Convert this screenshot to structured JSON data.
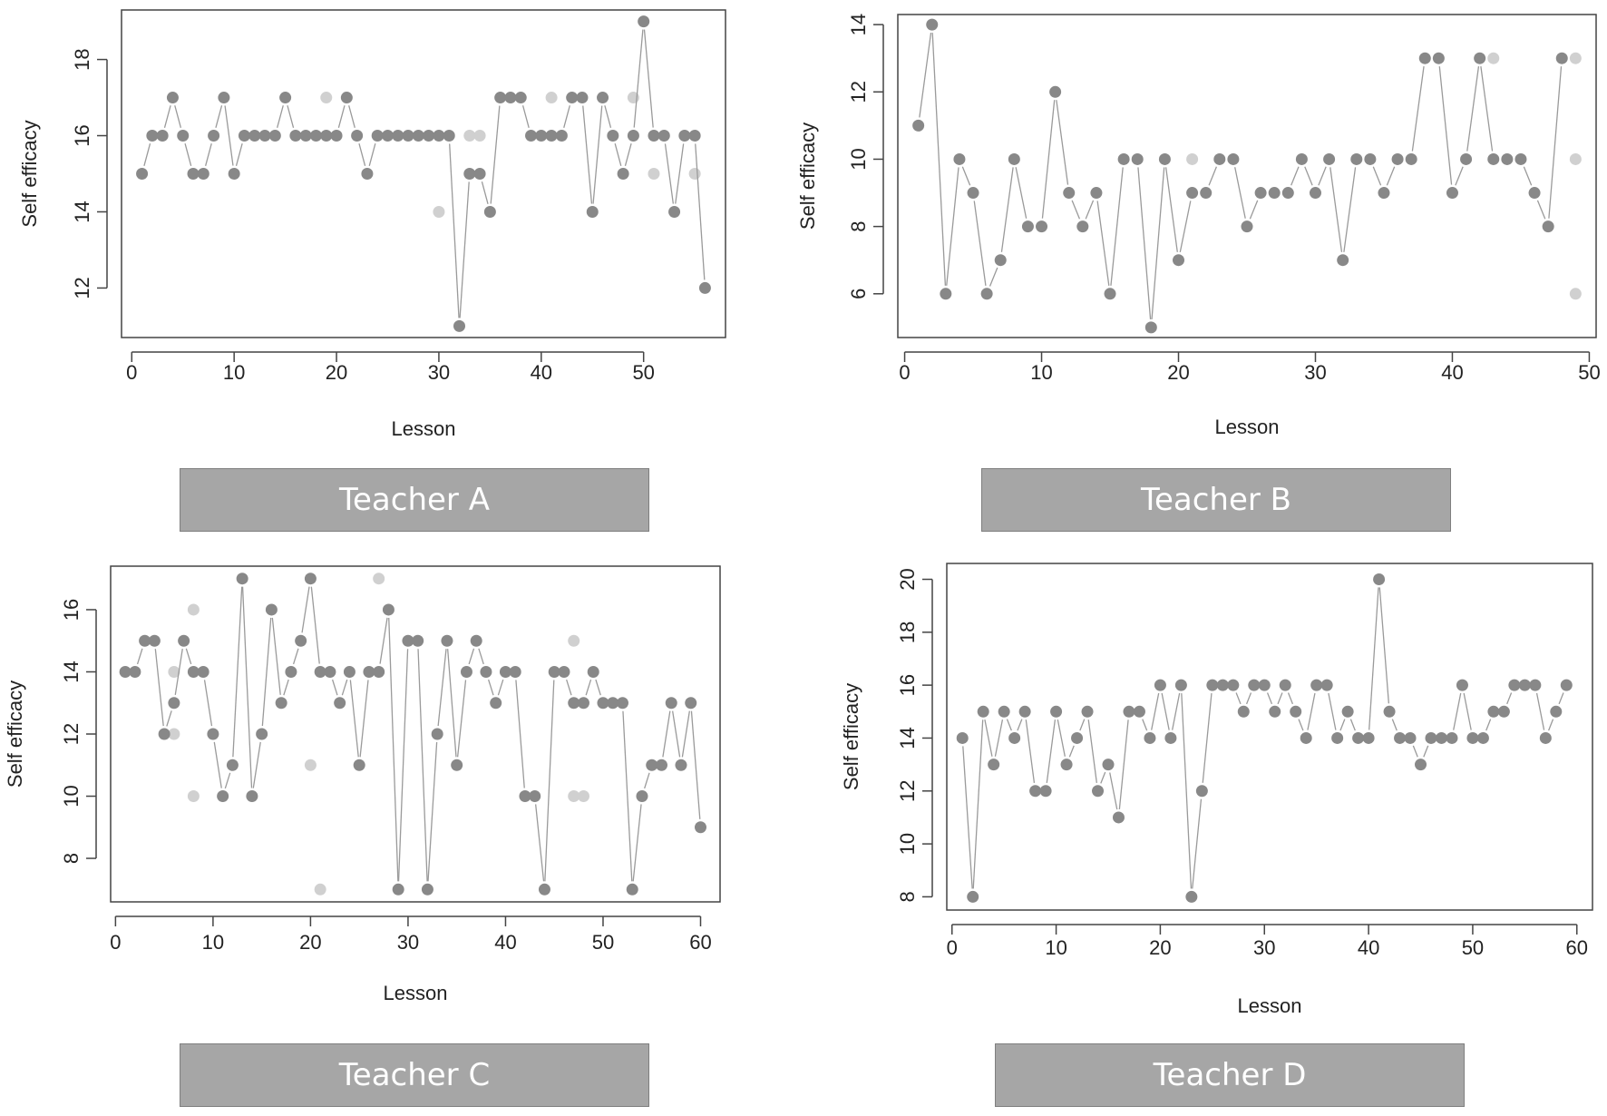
{
  "chart_data": [
    {
      "type": "scatter",
      "title": "",
      "xlabel": "Lesson",
      "ylabel": "Self efficacy",
      "xlim": [
        -1,
        58
      ],
      "ylim": [
        10.7,
        19.3
      ],
      "xticks": [
        0,
        10,
        20,
        30,
        40,
        50
      ],
      "yticks": [
        12,
        14,
        16,
        18
      ],
      "caption": "Teacher A",
      "series": [
        {
          "name": "main",
          "shade": "#888888",
          "line": "#9a9a9a",
          "x": [
            1,
            2,
            3,
            4,
            5,
            6,
            7,
            8,
            9,
            10,
            11,
            12,
            13,
            14,
            15,
            16,
            17,
            18,
            19,
            20,
            21,
            22,
            23,
            24,
            25,
            26,
            27,
            28,
            29,
            30,
            31,
            32,
            33,
            34,
            35,
            36,
            37,
            38,
            39,
            40,
            41,
            42,
            43,
            44,
            45,
            46,
            47,
            48,
            49,
            50,
            51,
            52,
            53,
            54,
            55,
            56
          ],
          "y": [
            15,
            16,
            16,
            17,
            16,
            15,
            15,
            16,
            17,
            15,
            16,
            16,
            16,
            16,
            17,
            16,
            16,
            16,
            16,
            16,
            17,
            16,
            15,
            16,
            16,
            16,
            16,
            16,
            16,
            16,
            16,
            11,
            15,
            15,
            14,
            17,
            17,
            17,
            16,
            16,
            16,
            16,
            17,
            17,
            14,
            17,
            16,
            15,
            16,
            19,
            16,
            16,
            14,
            16,
            16,
            12
          ]
        },
        {
          "name": "light",
          "shade": "#d0d0d0",
          "line": "#dcdcdc",
          "x": [
            19,
            30,
            33,
            34,
            41,
            49,
            51,
            55
          ],
          "y": [
            17,
            14,
            16,
            16,
            17,
            17,
            15,
            15
          ]
        }
      ]
    },
    {
      "type": "scatter",
      "title": "",
      "xlabel": "Lesson",
      "ylabel": "Self efficacy",
      "xlim": [
        -0.5,
        50.5
      ],
      "ylim": [
        4.7,
        14.3
      ],
      "xticks": [
        0,
        10,
        20,
        30,
        40,
        50
      ],
      "yticks": [
        6,
        8,
        10,
        12,
        14
      ],
      "caption": "Teacher B",
      "series": [
        {
          "name": "main",
          "shade": "#888888",
          "line": "#9a9a9a",
          "x": [
            1,
            2,
            3,
            4,
            5,
            6,
            7,
            8,
            9,
            10,
            11,
            12,
            13,
            14,
            15,
            16,
            17,
            18,
            19,
            20,
            21,
            22,
            23,
            24,
            25,
            26,
            27,
            28,
            29,
            30,
            31,
            32,
            33,
            34,
            35,
            36,
            37,
            38,
            39,
            40,
            41,
            42,
            43,
            44,
            45,
            46,
            47,
            48
          ],
          "y": [
            11,
            14,
            6,
            10,
            9,
            6,
            7,
            10,
            8,
            8,
            12,
            9,
            8,
            9,
            6,
            10,
            10,
            5,
            10,
            7,
            9,
            9,
            10,
            10,
            8,
            9,
            9,
            9,
            10,
            9,
            10,
            7,
            10,
            10,
            9,
            10,
            10,
            13,
            13,
            9,
            10,
            13,
            10,
            10,
            10,
            9,
            8,
            13
          ]
        },
        {
          "name": "light",
          "shade": "#d0d0d0",
          "line": "#dcdcdc",
          "x": [
            21,
            43,
            49,
            49,
            49
          ],
          "y": [
            10,
            13,
            13,
            10,
            6
          ]
        }
      ]
    },
    {
      "type": "scatter",
      "title": "",
      "xlabel": "Lesson",
      "ylabel": "Self efficacy",
      "xlim": [
        -0.5,
        62
      ],
      "ylim": [
        6.6,
        17.4
      ],
      "xticks": [
        0,
        10,
        20,
        30,
        40,
        50,
        60
      ],
      "yticks": [
        8,
        10,
        12,
        14,
        16
      ],
      "caption": "Teacher C",
      "series": [
        {
          "name": "main",
          "shade": "#888888",
          "line": "#9a9a9a",
          "x": [
            1,
            2,
            3,
            4,
            5,
            6,
            7,
            8,
            9,
            10,
            11,
            12,
            13,
            14,
            15,
            16,
            17,
            18,
            19,
            20,
            21,
            22,
            23,
            24,
            25,
            26,
            27,
            28,
            29,
            30,
            31,
            32,
            33,
            34,
            35,
            36,
            37,
            38,
            39,
            40,
            41,
            42,
            43,
            44,
            45,
            46,
            47,
            48,
            49,
            50,
            51,
            52,
            53,
            54,
            55,
            56,
            57,
            58,
            59,
            60
          ],
          "y": [
            14,
            14,
            15,
            15,
            12,
            13,
            15,
            14,
            14,
            12,
            10,
            11,
            17,
            10,
            12,
            16,
            13,
            14,
            15,
            17,
            14,
            14,
            13,
            14,
            11,
            14,
            14,
            16,
            7,
            15,
            15,
            7,
            12,
            15,
            11,
            14,
            15,
            14,
            13,
            14,
            14,
            10,
            10,
            7,
            14,
            14,
            13,
            13,
            14,
            13,
            13,
            13,
            7,
            10,
            11,
            11,
            13,
            11,
            13,
            9
          ]
        },
        {
          "name": "light",
          "shade": "#d0d0d0",
          "line": "#dcdcdc",
          "x": [
            6,
            6,
            8,
            8,
            20,
            21,
            27,
            47,
            47,
            48
          ],
          "y": [
            14,
            12,
            16,
            10,
            11,
            7,
            17,
            15,
            10,
            10
          ]
        }
      ]
    },
    {
      "type": "scatter",
      "title": "",
      "xlabel": "Lesson",
      "ylabel": "Self efficacy",
      "xlim": [
        -0.5,
        61.5
      ],
      "ylim": [
        7.5,
        20.6
      ],
      "xticks": [
        0,
        10,
        20,
        30,
        40,
        50,
        60
      ],
      "yticks": [
        8,
        10,
        12,
        14,
        16,
        18,
        20
      ],
      "caption": "Teacher D",
      "series": [
        {
          "name": "main",
          "shade": "#888888",
          "line": "#9a9a9a",
          "x": [
            1,
            2,
            3,
            4,
            5,
            6,
            7,
            8,
            9,
            10,
            11,
            12,
            13,
            14,
            15,
            16,
            17,
            18,
            19,
            20,
            21,
            22,
            23,
            24,
            25,
            26,
            27,
            28,
            29,
            30,
            31,
            32,
            33,
            34,
            35,
            36,
            37,
            38,
            39,
            40,
            41,
            42,
            43,
            44,
            45,
            46,
            47,
            48,
            49,
            50,
            51,
            52,
            53,
            54,
            55,
            56,
            57,
            58,
            59
          ],
          "y": [
            14,
            8,
            15,
            13,
            15,
            14,
            15,
            12,
            12,
            15,
            13,
            14,
            15,
            12,
            13,
            11,
            15,
            15,
            14,
            16,
            14,
            16,
            8,
            12,
            16,
            16,
            16,
            15,
            16,
            16,
            15,
            16,
            15,
            14,
            16,
            16,
            14,
            15,
            14,
            14,
            20,
            15,
            14,
            14,
            13,
            14,
            14,
            14,
            16,
            14,
            14,
            15,
            15,
            16,
            16,
            16,
            14,
            15,
            16
          ]
        }
      ]
    }
  ]
}
